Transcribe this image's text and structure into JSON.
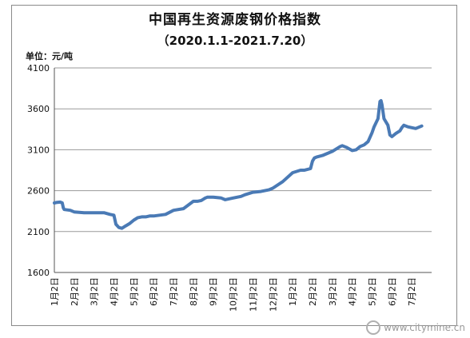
{
  "watermark": {
    "text": "www.citymine.cn"
  },
  "chart_data": {
    "type": "line",
    "title": "中国再生资源废钢价格指数",
    "subtitle": "（2020.1.1-2021.7.20）",
    "unit_label": "单位：元/吨",
    "ylim": [
      1600,
      4100
    ],
    "yticks": [
      1600,
      2100,
      2600,
      3100,
      3600,
      4100
    ],
    "categories": [
      "1月2日",
      "2月2日",
      "3月2日",
      "4月2日",
      "5月2日",
      "6月2日",
      "7月2日",
      "8月2日",
      "9月2日",
      "10月2日",
      "11月2日",
      "12月2日",
      "1月2日",
      "2月2日",
      "3月2日",
      "4月2日",
      "5月2日",
      "6月2日",
      "7月2日"
    ],
    "grid": true,
    "legend": "none",
    "line_color": "#4a7ab5",
    "series": [
      {
        "x": [
          0,
          0.1,
          0.3,
          0.4,
          0.45,
          0.5,
          0.8,
          1,
          1.5,
          2,
          2.5,
          2.8,
          3,
          3.1,
          3.25,
          3.4,
          3.6,
          3.8,
          4,
          4.2,
          4.4,
          4.6,
          4.8,
          5,
          5.3,
          5.6,
          6,
          6.5,
          7,
          7.2,
          7.4,
          7.6,
          7.7,
          8,
          8.4,
          8.6,
          9,
          9.4,
          9.6,
          10,
          10.4,
          10.8,
          11,
          11.5,
          12,
          12.4,
          12.6,
          12.9,
          13,
          13.1,
          13.2,
          13.5,
          14,
          14.4,
          14.5,
          14.7,
          15,
          15.2,
          15.4,
          15.6,
          15.8,
          16,
          16.1,
          16.3,
          16.4,
          16.45,
          16.5,
          16.6,
          16.8,
          16.9,
          17,
          17.2,
          17.4,
          17.5,
          17.6,
          17.8,
          18,
          18.2,
          18.5
        ],
        "y": [
          2450,
          2455,
          2460,
          2450,
          2390,
          2370,
          2360,
          2340,
          2330,
          2330,
          2330,
          2310,
          2300,
          2190,
          2150,
          2140,
          2170,
          2200,
          2240,
          2270,
          2280,
          2280,
          2290,
          2290,
          2300,
          2310,
          2360,
          2380,
          2470,
          2470,
          2480,
          2510,
          2520,
          2520,
          2510,
          2490,
          2510,
          2530,
          2550,
          2580,
          2590,
          2610,
          2630,
          2710,
          2820,
          2850,
          2850,
          2870,
          2960,
          3000,
          3010,
          3030,
          3080,
          3140,
          3150,
          3130,
          3090,
          3100,
          3140,
          3160,
          3200,
          3310,
          3380,
          3480,
          3690,
          3700,
          3650,
          3480,
          3400,
          3280,
          3260,
          3300,
          3330,
          3370,
          3400,
          3380,
          3370,
          3360,
          3390
        ]
      }
    ]
  }
}
